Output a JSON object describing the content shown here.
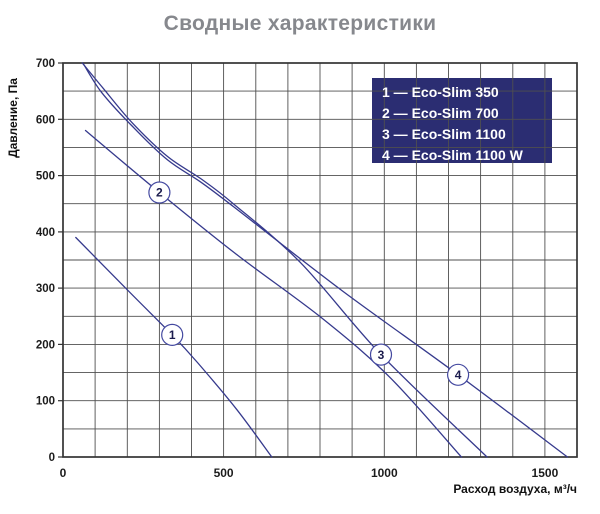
{
  "colors": {
    "title": "#86888d",
    "curve": "#363a8d",
    "legend_bg": "#2b2d72",
    "legend_text": "#ffffff",
    "marker_fill": "#ffffff",
    "marker_stroke": "#4449a0"
  },
  "chart_data": {
    "type": "line",
    "title": "Сводные характеристики",
    "xlabel": "Расход воздуха, м³/ч",
    "ylabel": "Давление, Па",
    "xlim": [
      0,
      1600
    ],
    "ylim": [
      0,
      700
    ],
    "xticks": [
      0,
      500,
      1000,
      1500
    ],
    "yticks": [
      0,
      100,
      200,
      300,
      400,
      500,
      600,
      700
    ],
    "x_grid_step": 100,
    "y_grid_step": 50,
    "grid": true,
    "legend_position": "top-right",
    "legend_items": [
      {
        "label": "1 — Eco-Slim 350"
      },
      {
        "label": "2 — Eco-Slim 700"
      },
      {
        "label": "3 — Eco-Slim 1100"
      },
      {
        "label": "4 — Eco-Slim 1100 W"
      }
    ],
    "series": [
      {
        "num": "1",
        "name": "Eco-Slim 350",
        "label_at": [
          340,
          217
        ],
        "points": [
          [
            40,
            390
          ],
          [
            200,
            297
          ],
          [
            340,
            217
          ],
          [
            420,
            167
          ],
          [
            540,
            85
          ],
          [
            650,
            0
          ]
        ]
      },
      {
        "num": "2",
        "name": "Eco-Slim 700",
        "label_at": [
          300,
          470
        ],
        "points": [
          [
            70,
            580
          ],
          [
            300,
            470
          ],
          [
            540,
            360
          ],
          [
            810,
            245
          ],
          [
            1020,
            140
          ],
          [
            1240,
            0
          ]
        ]
      },
      {
        "num": "3",
        "name": "Eco-Slim 1100",
        "label_at": [
          990,
          182
        ],
        "points": [
          [
            60,
            700
          ],
          [
            125,
            655
          ],
          [
            215,
            594
          ],
          [
            325,
            534
          ],
          [
            430,
            494
          ],
          [
            530,
            450
          ],
          [
            740,
            345
          ],
          [
            990,
            182
          ],
          [
            1320,
            0
          ]
        ]
      },
      {
        "num": "4",
        "name": "Eco-Slim 1100 W",
        "label_at": [
          1230,
          146
        ],
        "points": [
          [
            65,
            697
          ],
          [
            120,
            648
          ],
          [
            215,
            588
          ],
          [
            325,
            528
          ],
          [
            430,
            488
          ],
          [
            530,
            445
          ],
          [
            870,
            295
          ],
          [
            1230,
            146
          ],
          [
            1570,
            0
          ]
        ]
      }
    ]
  }
}
